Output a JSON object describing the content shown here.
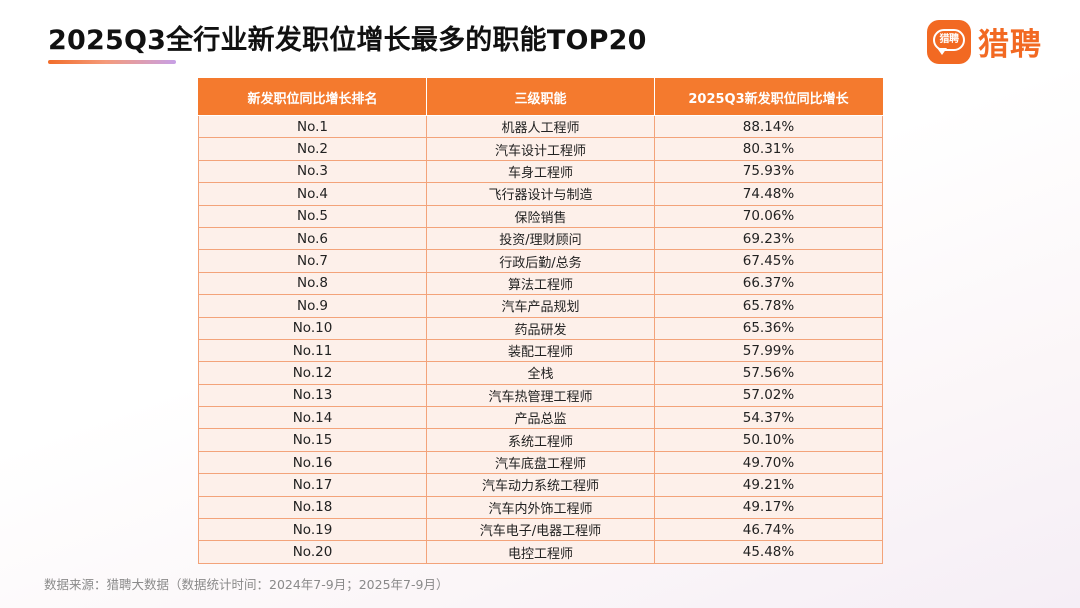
{
  "header": {
    "title": "2025Q3全行业新发职位增长最多的职能TOP20"
  },
  "logo": {
    "badge_text": "猎聘",
    "name": "猎聘",
    "brand_color": "#f26922"
  },
  "table": {
    "columns": [
      "新发职位同比增长排名",
      "三级职能",
      "2025Q3新发职位同比增长"
    ],
    "rows": [
      [
        "No.1",
        "机器人工程师",
        "88.14%"
      ],
      [
        "No.2",
        "汽车设计工程师",
        "80.31%"
      ],
      [
        "No.3",
        "车身工程师",
        "75.93%"
      ],
      [
        "No.4",
        "飞行器设计与制造",
        "74.48%"
      ],
      [
        "No.5",
        "保险销售",
        "70.06%"
      ],
      [
        "No.6",
        "投资/理财顾问",
        "69.23%"
      ],
      [
        "No.7",
        "行政后勤/总务",
        "67.45%"
      ],
      [
        "No.8",
        "算法工程师",
        "66.37%"
      ],
      [
        "No.9",
        "汽车产品规划",
        "65.78%"
      ],
      [
        "No.10",
        "药品研发",
        "65.36%"
      ],
      [
        "No.11",
        "装配工程师",
        "57.99%"
      ],
      [
        "No.12",
        "全栈",
        "57.56%"
      ],
      [
        "No.13",
        "汽车热管理工程师",
        "57.02%"
      ],
      [
        "No.14",
        "产品总监",
        "54.37%"
      ],
      [
        "No.15",
        "系统工程师",
        "50.10%"
      ],
      [
        "No.16",
        "汽车底盘工程师",
        "49.70%"
      ],
      [
        "No.17",
        "汽车动力系统工程师",
        "49.21%"
      ],
      [
        "No.18",
        "汽车内外饰工程师",
        "49.17%"
      ],
      [
        "No.19",
        "汽车电子/电器工程师",
        "46.74%"
      ],
      [
        "No.20",
        "电控工程师",
        "45.48%"
      ]
    ]
  },
  "footer": {
    "source": "数据来源：猎聘大数据（数据统计时间：2024年7-9月；2025年7-9月）"
  }
}
